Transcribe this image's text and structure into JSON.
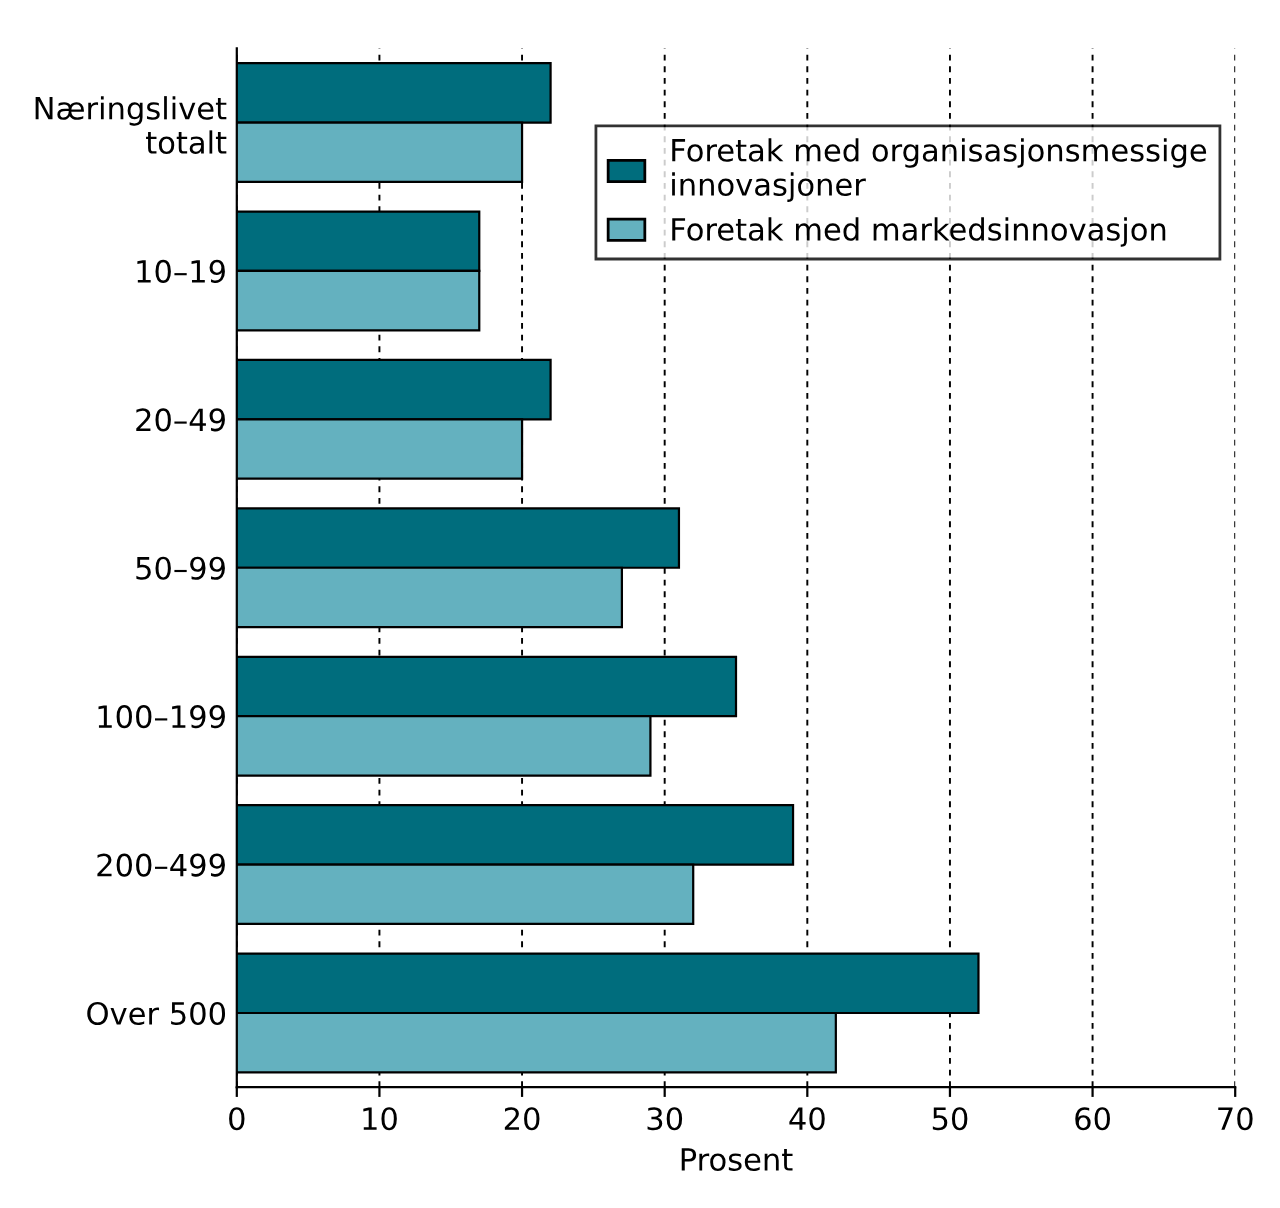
{
  "chart_data": {
    "type": "bar",
    "orientation": "horizontal",
    "xlabel": "Prosent",
    "categories": [
      "Næringslivet\ntotalt",
      "10–19",
      "20–49",
      "50–99",
      "100–199",
      "200–499",
      "Over 500"
    ],
    "series": [
      {
        "name": "Foretak med organisasjonsmessige\ninnovasjoner",
        "color": "#006d7d",
        "values": [
          22,
          17,
          22,
          31,
          35,
          39,
          52
        ]
      },
      {
        "name": "Foretak med markedsinnovasjon",
        "color": "#64b1bf",
        "values": [
          20,
          17,
          20,
          27,
          29,
          32,
          42
        ]
      }
    ],
    "xlim": [
      0,
      70
    ],
    "xticks": [
      0,
      10,
      20,
      30,
      40,
      50,
      60,
      70
    ],
    "grid": "x",
    "legend": "top right"
  }
}
